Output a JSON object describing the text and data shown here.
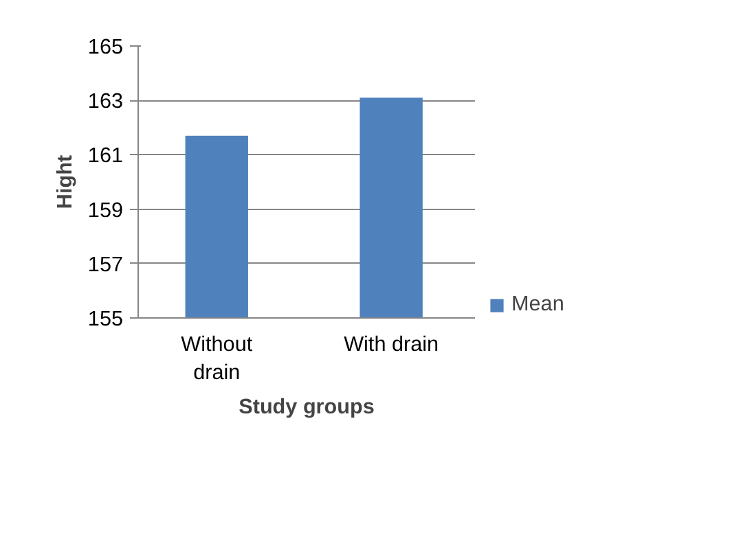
{
  "chart_data": {
    "type": "bar",
    "xlabel": "Study groups",
    "ylabel": "Hight",
    "categories": [
      "Without drain",
      "With drain"
    ],
    "series": [
      {
        "name": "Mean",
        "color": "#4f81bd",
        "values": [
          161.7,
          163.1
        ]
      }
    ],
    "ylim": [
      155,
      165
    ],
    "yticks": [
      155,
      157,
      159,
      161,
      163,
      165
    ],
    "grid": "y",
    "legend": "right"
  }
}
